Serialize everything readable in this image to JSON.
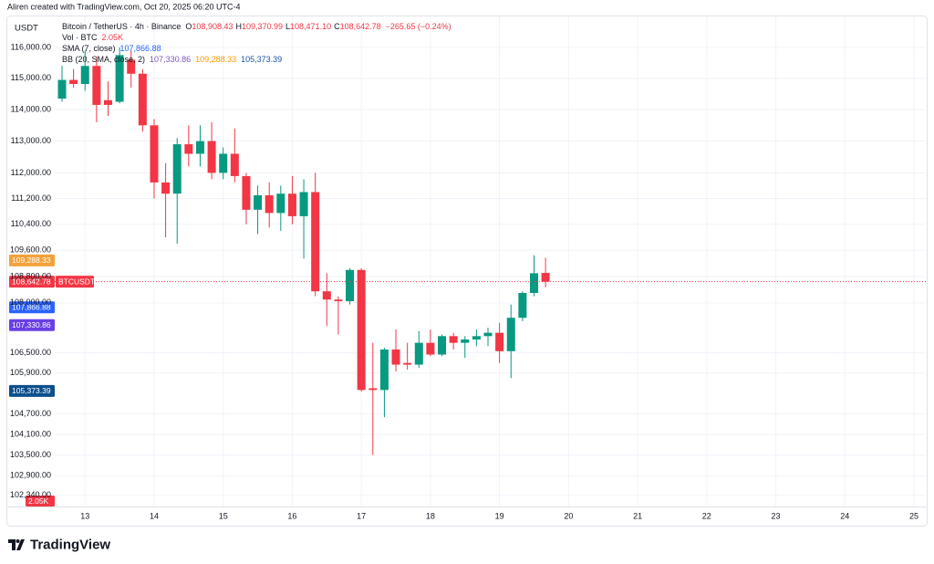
{
  "chart_data": {
    "type": "candlestick",
    "attribution": "Aliren created with TradingView.com, Oct 20, 2025 06:20 UTC-4",
    "currency": "USDT",
    "logo": "TradingView",
    "header": {
      "symbol": "Bitcoin / TetherUS · 4h · Binance",
      "ohlc": [
        {
          "key": "O",
          "value": "108,908.43"
        },
        {
          "key": "H",
          "value": "109,370.99"
        },
        {
          "key": "L",
          "value": "108,471.10"
        },
        {
          "key": "C",
          "value": "108,642.78"
        }
      ],
      "change": "−265.65 (−0.24%)"
    },
    "indicators": [
      {
        "name": "Vol · BTC",
        "values": [
          {
            "text": "2.05K",
            "color": "#f23645"
          }
        ]
      },
      {
        "name": "SMA (7, close)",
        "values": [
          {
            "text": "107,866.88",
            "color": "#2962ff"
          }
        ]
      },
      {
        "name": "BB (20, SMA, close, 2)",
        "values": [
          {
            "text": "107,330.86",
            "color": "#7e57c2"
          },
          {
            "text": "109,288.33",
            "color": "#ff9800"
          },
          {
            "text": "105,373.39",
            "color": "#1e53a5"
          }
        ]
      }
    ],
    "categories": [
      null,
      null,
      "13",
      null,
      null,
      null,
      null,
      null,
      "14",
      null,
      null,
      null,
      null,
      null,
      "15",
      null,
      null,
      null,
      null,
      null,
      "16",
      null,
      null,
      null,
      null,
      null,
      "17",
      null,
      null,
      null,
      null,
      null,
      "18",
      null,
      null,
      null,
      null,
      null,
      "19",
      null,
      null,
      null,
      null,
      null,
      "20",
      null,
      null,
      null,
      null,
      null,
      "21",
      null,
      null,
      null,
      null,
      null,
      "22",
      null,
      null,
      null,
      null,
      null,
      "23",
      null,
      null,
      null,
      null,
      null,
      "24",
      null,
      null,
      null,
      null,
      null,
      "25"
    ],
    "open": [
      114350,
      114950,
      114820,
      115400,
      114300,
      114250,
      115600,
      115150,
      113500,
      111700,
      111350,
      112900,
      112600,
      113000,
      112000,
      112600,
      111900,
      110850,
      111300,
      110750,
      111350,
      110650,
      111400,
      108350,
      108100,
      108050,
      109000,
      105450,
      105400,
      106600,
      106200,
      106150,
      106800,
      106450,
      107000,
      106800,
      106900,
      107000,
      107100,
      106550,
      107550,
      108300,
      108908.43,
      null,
      null,
      null,
      null,
      null,
      null,
      null,
      null,
      null,
      null,
      null,
      null,
      null,
      null,
      null,
      null,
      null,
      null,
      null,
      null,
      null,
      null,
      null,
      null,
      null,
      null,
      null,
      null,
      null,
      null,
      null,
      null
    ],
    "high": [
      115400,
      115300,
      115900,
      115700,
      114900,
      116000,
      115900,
      115300,
      113700,
      112300,
      113100,
      113500,
      113500,
      113600,
      112800,
      113400,
      112000,
      111600,
      111700,
      111600,
      111900,
      111800,
      112000,
      108900,
      108200,
      109050,
      109050,
      106800,
      106650,
      107200,
      106800,
      107150,
      107200,
      107050,
      107100,
      107000,
      107200,
      107250,
      107400,
      107950,
      108350,
      109450,
      109370.99,
      null,
      null,
      null,
      null,
      null,
      null,
      null,
      null,
      null,
      null,
      null,
      null,
      null,
      null,
      null,
      null,
      null,
      null,
      null,
      null,
      null,
      null,
      null,
      null,
      null,
      null,
      null,
      null,
      null,
      null,
      null,
      null
    ],
    "low": [
      114250,
      114700,
      114600,
      113600,
      113800,
      114200,
      114700,
      113300,
      111200,
      110000,
      109800,
      112200,
      112200,
      111800,
      111800,
      111700,
      110400,
      110100,
      110300,
      110200,
      110400,
      109350,
      108200,
      107300,
      107050,
      107950,
      105350,
      103500,
      104600,
      105950,
      106000,
      106050,
      106400,
      106400,
      106600,
      106350,
      106700,
      106700,
      106200,
      105750,
      107450,
      108200,
      108471.1,
      null,
      null,
      null,
      null,
      null,
      null,
      null,
      null,
      null,
      null,
      null,
      null,
      null,
      null,
      null,
      null,
      null,
      null,
      null,
      null,
      null,
      null,
      null,
      null,
      null,
      null,
      null,
      null,
      null,
      null,
      null,
      null
    ],
    "close": [
      114950,
      114820,
      115400,
      114150,
      114150,
      115750,
      115150,
      113500,
      111700,
      111350,
      112900,
      112600,
      113000,
      112000,
      112600,
      111900,
      110850,
      111300,
      110750,
      111350,
      110650,
      111400,
      108350,
      108100,
      108050,
      109000,
      105400,
      105400,
      106600,
      106150,
      106150,
      106800,
      106450,
      107000,
      106800,
      106900,
      107000,
      107100,
      106550,
      107550,
      108300,
      108900,
      108642.78,
      null,
      null,
      null,
      null,
      null,
      null,
      null,
      null,
      null,
      null,
      null,
      null,
      null,
      null,
      null,
      null,
      null,
      null,
      null,
      null,
      null,
      null,
      null,
      null,
      null,
      null,
      null,
      null,
      null,
      null,
      null,
      null
    ],
    "up_color": "#089981",
    "down_color": "#f23645",
    "log_scale": true,
    "grid": true,
    "ylim": [
      102020,
      117010
    ],
    "yticks": [
      {
        "value": 102340,
        "label": "102,340.00"
      },
      {
        "value": 102900,
        "label": "102,900.00"
      },
      {
        "value": 103500,
        "label": "103,500.00"
      },
      {
        "value": 104100,
        "label": "104,100.00"
      },
      {
        "value": 104700,
        "label": "104,700.00"
      },
      {
        "value": 105900,
        "label": "105,900.00"
      },
      {
        "value": 106500,
        "label": "106,500.00"
      },
      {
        "value": 108000,
        "label": "108,000.00"
      },
      {
        "value": 108800,
        "label": "108,800.00"
      },
      {
        "value": 109600,
        "label": "109,600.00"
      },
      {
        "value": 110400,
        "label": "110,400.00"
      },
      {
        "value": 111200,
        "label": "111,200.00"
      },
      {
        "value": 112000,
        "label": "112,000.00"
      },
      {
        "value": 113000,
        "label": "113,000.00"
      },
      {
        "value": 114000,
        "label": "114,000.00"
      },
      {
        "value": 115000,
        "label": "115,000.00"
      },
      {
        "value": 116000,
        "label": "116,000.00"
      }
    ],
    "price_line": {
      "value": 108642.78,
      "label": "108,642.78",
      "name": "BTCUSDT",
      "color": "#f23645"
    },
    "price_labels": [
      {
        "value": 109288.33,
        "label": "109,288.33",
        "color": "#f2a23c"
      },
      {
        "value": 107866.88,
        "label": "107,866.88",
        "color": "#2962ff"
      },
      {
        "value": 107330.86,
        "label": "107,330.86",
        "color": "#6a3fe6"
      },
      {
        "value": 105373.39,
        "label": "105,373.39",
        "color": "#0c4f8c"
      }
    ]
  }
}
